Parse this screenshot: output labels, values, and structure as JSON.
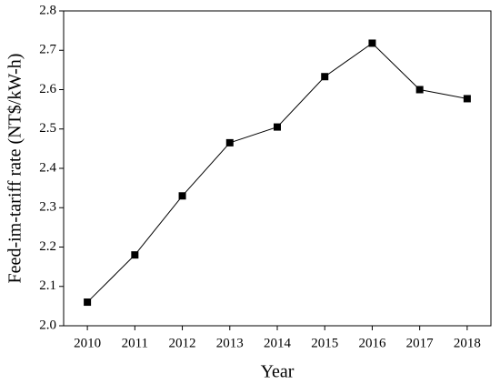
{
  "chart_data": {
    "type": "line",
    "x_label": "Year",
    "y_label": "Feed-im-tariff rate (NT$/kW-h)",
    "categories": [
      "2010",
      "2011",
      "2012",
      "2013",
      "2014",
      "2015",
      "2016",
      "2017",
      "2018"
    ],
    "values": [
      2.06,
      2.18,
      2.33,
      2.465,
      2.505,
      2.633,
      2.718,
      2.6,
      2.577
    ],
    "color": "#000000",
    "ylim": [
      2.0,
      2.8
    ],
    "yticks": [
      {
        "value": 2.0,
        "label": "2.0"
      },
      2.1,
      2.2,
      2.3,
      2.4,
      2.5,
      2.6,
      2.7,
      2.8
    ]
  }
}
